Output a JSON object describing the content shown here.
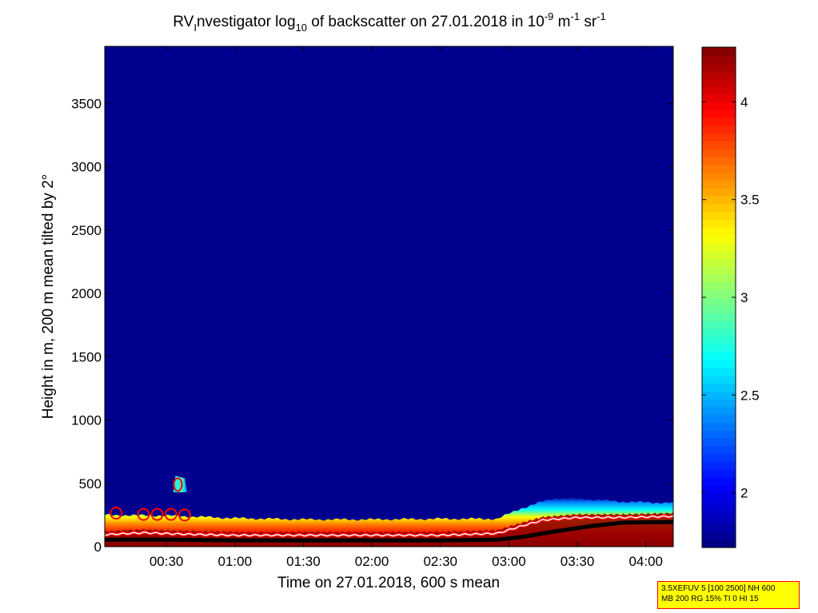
{
  "chart_data": {
    "type": "heatmap",
    "title": {
      "main_a": "RV",
      "sub_a": "I",
      "main_b": "nvestigator log",
      "sub_b": "10",
      "main_c": " of backscatter on 27.01.2018 in 10",
      "sup_c": "-9",
      "main_d": " m",
      "sup_d": "-1",
      "main_e": " sr",
      "sup_e": "-1"
    },
    "xlabel": "Time on 27.01.2018, 600 s mean",
    "ylabel": "Height in m, 200 m mean tilted by 2°",
    "x_ticks": [
      "00:30",
      "01:00",
      "01:30",
      "02:00",
      "02:30",
      "03:00",
      "03:30",
      "04:00"
    ],
    "x_tick_minutes": [
      30,
      60,
      90,
      120,
      150,
      180,
      210,
      240
    ],
    "xlim_minutes": [
      3,
      252
    ],
    "y_ticks": [
      0,
      500,
      1000,
      1500,
      2000,
      2500,
      3000,
      3500
    ],
    "ylim": [
      0,
      3950
    ],
    "colorbar": {
      "ticks": [
        2,
        2.5,
        3,
        3.5,
        4
      ],
      "tick_labels": [
        "2",
        "2.5",
        "3",
        "3.5",
        "4"
      ],
      "range": [
        1.72,
        4.28
      ],
      "colormap": "jet"
    },
    "background_value": 1.72,
    "colormap_colors": [
      "#00008f",
      "#0000ff",
      "#00ffff",
      "#ffff00",
      "#ff0000",
      "#800000"
    ],
    "layers": [
      {
        "name": "boundary layer",
        "x": [
          3,
          30,
          60,
          90,
          120,
          150,
          175,
          185,
          200,
          215,
          230,
          252
        ],
        "top": [
          250,
          245,
          225,
          215,
          215,
          220,
          220,
          300,
          385,
          375,
          355,
          345
        ]
      },
      {
        "name": "elevated feature",
        "x": [
          33,
          39
        ],
        "y": [
          430,
          560
        ]
      }
    ],
    "white_line": {
      "x": [
        3,
        20,
        35,
        60,
        90,
        120,
        150,
        175,
        185,
        195,
        210,
        230,
        252
      ],
      "y": [
        95,
        110,
        100,
        90,
        90,
        90,
        90,
        105,
        160,
        210,
        230,
        230,
        240
      ]
    },
    "black_line": {
      "x": [
        3,
        30,
        60,
        90,
        120,
        150,
        175,
        185,
        200,
        215,
        230,
        252
      ],
      "y": [
        55,
        55,
        50,
        50,
        50,
        50,
        55,
        75,
        120,
        160,
        190,
        195
      ]
    }
  },
  "settings_box": {
    "line1": "3.5XEFUV 5 [100 2500] NH 600",
    "line2": "MB 200 RG 15% TI 0 HI 15"
  },
  "colors": {
    "background": "#00008f",
    "box_fill": "#ffff00",
    "box_border": "#ff0000"
  }
}
